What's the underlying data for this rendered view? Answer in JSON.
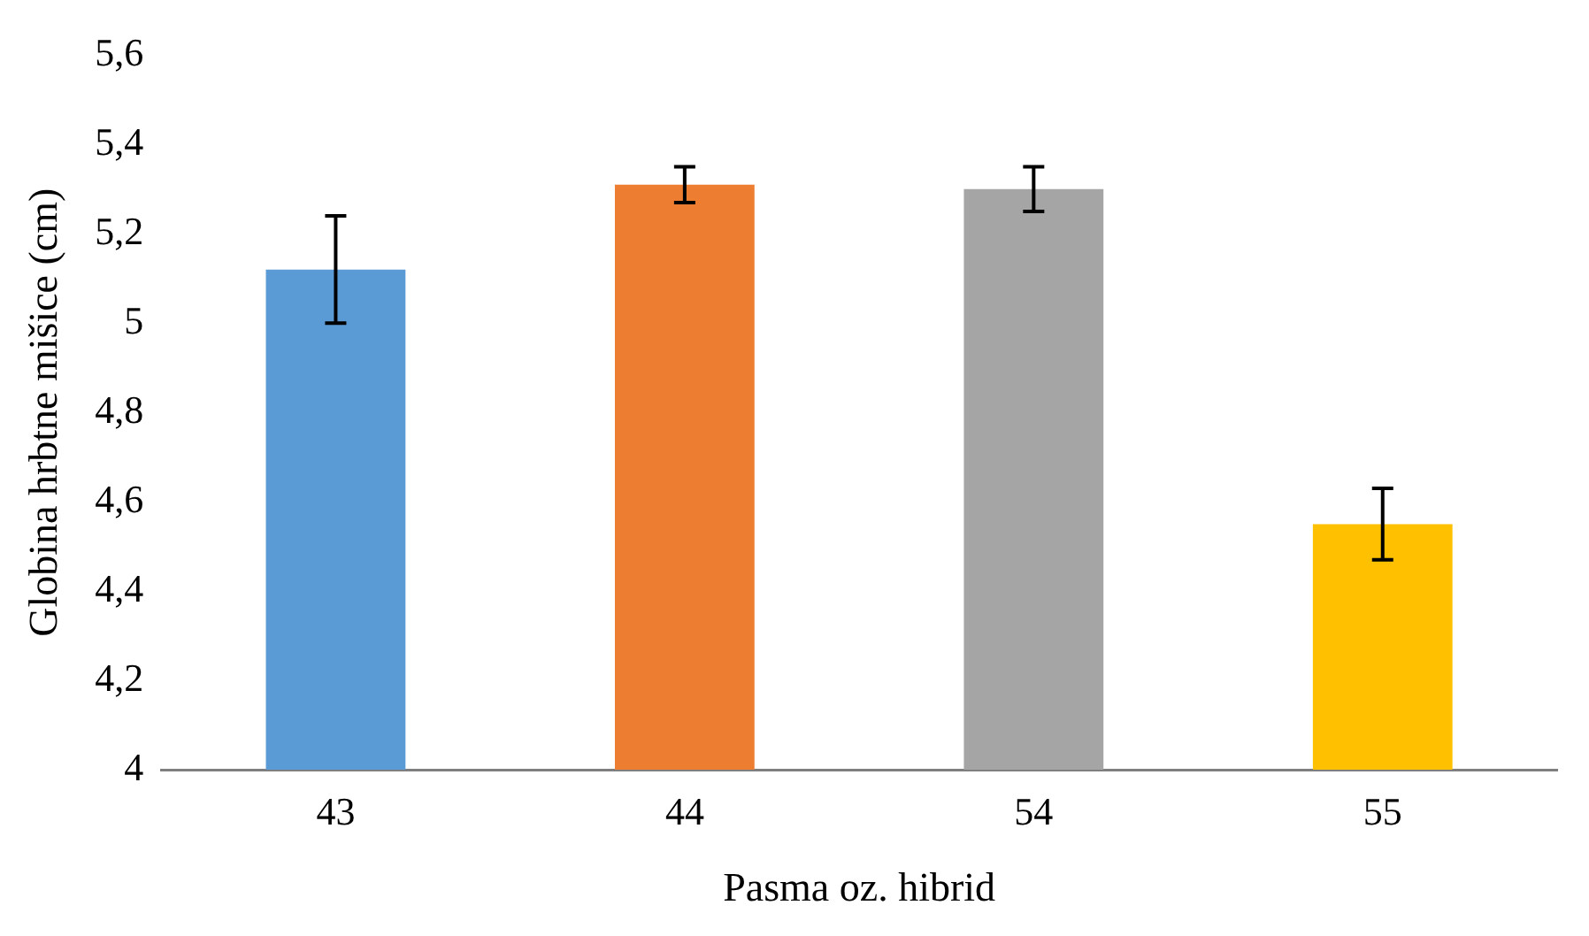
{
  "chart_data": {
    "type": "bar",
    "xlabel": "Pasma oz. hibrid",
    "ylabel": "Globina hrbtne mišice (cm)",
    "categories": [
      "43",
      "44",
      "54",
      "55"
    ],
    "values": [
      5.12,
      5.31,
      5.3,
      4.55
    ],
    "colors": [
      "#5b9bd5",
      "#ed7d31",
      "#a5a5a5",
      "#ffc000"
    ],
    "errors": [
      0.12,
      0.04,
      0.05,
      0.08
    ],
    "ylim": [
      4,
      5.6
    ],
    "yticks": [
      {
        "value": 4,
        "label": "4"
      },
      {
        "value": 4.2,
        "label": "4,2"
      },
      {
        "value": 4.4,
        "label": "4,4"
      },
      {
        "value": 4.6,
        "label": "4,6"
      },
      {
        "value": 4.8,
        "label": "4,8"
      },
      {
        "value": 5,
        "label": "5"
      },
      {
        "value": 5.2,
        "label": "5,2"
      },
      {
        "value": 5.4,
        "label": "5,4"
      },
      {
        "value": 5.6,
        "label": "5,6"
      }
    ],
    "grid": false,
    "legend": false
  }
}
